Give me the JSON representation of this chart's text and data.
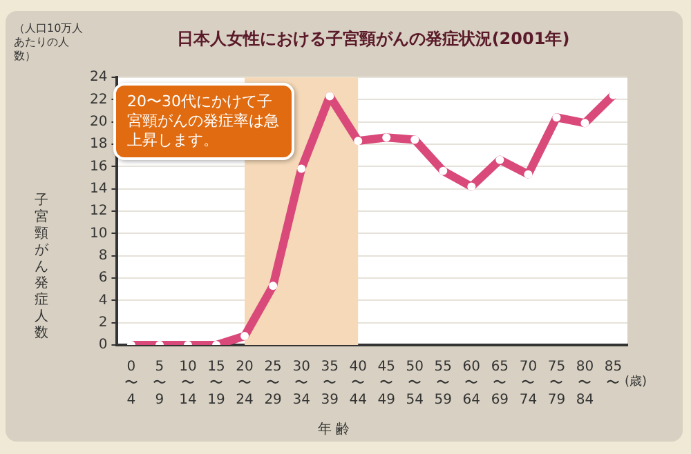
{
  "chart_data": {
    "type": "line",
    "title": "日本人女性における子宮頸がんの発症状況(2001年)",
    "xlabel": "年 齢",
    "ylabel": "子宮頸がん発症人数",
    "annotations": [
      "（人口10万人あたりの人数）",
      "(歳)",
      "20〜30代にかけて子宮頸がんの発症率は急上昇します。"
    ],
    "categories": [
      "0\n〜\n4",
      "5\n〜\n9",
      "10\n〜\n14",
      "15\n〜\n19",
      "20\n〜\n24",
      "25\n〜\n29",
      "30\n〜\n34",
      "35\n〜\n39",
      "40\n〜\n44",
      "45\n〜\n49",
      "50\n〜\n54",
      "55\n〜\n59",
      "60\n〜\n64",
      "65\n〜\n69",
      "70\n〜\n74",
      "75\n〜\n79",
      "80\n〜\n84",
      "85\n〜"
    ],
    "series": [
      {
        "color": "#d9497a",
        "values": [
          0,
          0,
          0,
          0,
          0.8,
          5.3,
          15.8,
          22.3,
          18.3,
          18.6,
          18.4,
          15.6,
          14.2,
          16.6,
          15.3,
          20.4,
          19.9,
          22.4
        ]
      }
    ],
    "ylim": [
      0,
      24
    ],
    "yticks": [
      0,
      2,
      4,
      6,
      8,
      10,
      12,
      14,
      16,
      18,
      20,
      22,
      24
    ],
    "grid": "y",
    "legend": false,
    "marker": "circle",
    "line_style": "solid",
    "bands": [
      {
        "axis": "x",
        "from": "20\n〜\n24",
        "to": "40\n〜\n44",
        "color": "#f5d9b8"
      }
    ]
  }
}
